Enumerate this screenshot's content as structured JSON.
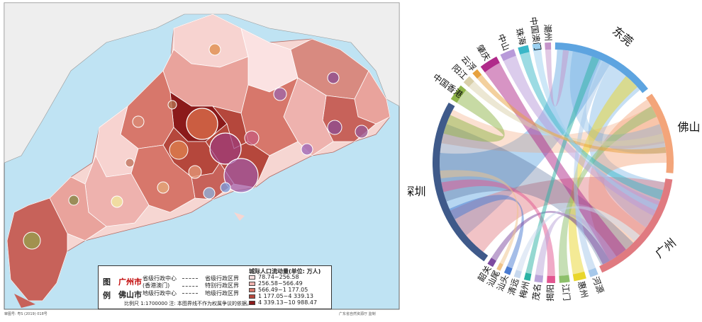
{
  "map": {
    "legend": {
      "tu": "图",
      "li": "例",
      "city_gz": "广州市",
      "city_fs": "佛山市",
      "prov_center": "省级行政中心",
      "sar": "(香港澳门)",
      "pref_center": "地级行政中心",
      "prov_boundary": "省级行政区界",
      "sar_boundary": "特别行政区界",
      "pref_boundary": "地级行政区界",
      "flow_title": "城际人口流动量(单位: 万人)",
      "classes": [
        {
          "label": "78.74~256.58",
          "color": "#fbe2e2"
        },
        {
          "label": "256.58~566.49",
          "color": "#eeb2ae"
        },
        {
          "label": "566.49~1 177.05",
          "color": "#d7776b"
        },
        {
          "label": "1 177.05~4 339.13",
          "color": "#b5473c"
        },
        {
          "label": "4 339.13~10 988.47",
          "color": "#8b1a1a"
        }
      ],
      "scale": "比例尺 1:1700000   注: 本图界线不作为权属争议的依据。"
    },
    "footer_left": "审图号: 粤S (2019) 018号",
    "footer_right": "广东省自然资源厅 监制"
  },
  "chord_data": {
    "type": "chord",
    "nodes": [
      {
        "name": "东莞",
        "color": "#5da4e0"
      },
      {
        "name": "佛山",
        "color": "#f3a57a"
      },
      {
        "name": "广州",
        "color": "#e07a80"
      },
      {
        "name": "河源",
        "color": "#a6c8ea"
      },
      {
        "name": "惠州",
        "color": "#e9d62b"
      },
      {
        "name": "江门",
        "color": "#8dc06b"
      },
      {
        "name": "揭阳",
        "color": "#e25690"
      },
      {
        "name": "茂名",
        "color": "#b9a3d8"
      },
      {
        "name": "梅州",
        "color": "#2bb2a3"
      },
      {
        "name": "清远",
        "color": "#c7d8ee"
      },
      {
        "name": "汕头",
        "color": "#4a7bd1"
      },
      {
        "name": "汕尾",
        "color": "#f0c48a"
      },
      {
        "name": "韶关",
        "color": "#7d4aa0"
      },
      {
        "name": "深圳",
        "color": "#3f5a8a"
      },
      {
        "name": "中国香港",
        "color": "#8fb54a"
      },
      {
        "name": "阳江",
        "color": "#d9cfa8"
      },
      {
        "name": "云浮",
        "color": "#e7a13e"
      },
      {
        "name": "肇庆",
        "color": "#b02a8a"
      },
      {
        "name": "中山",
        "color": "#b89ad9"
      },
      {
        "name": "珠海",
        "color": "#3ab7c8"
      },
      {
        "name": "中国澳门",
        "color": "#9bd0f0"
      },
      {
        "name": "潮州",
        "color": "#c493c9"
      }
    ]
  },
  "icons": {
    "map_area": "guangdong-map",
    "chord": "chord-diagram"
  }
}
